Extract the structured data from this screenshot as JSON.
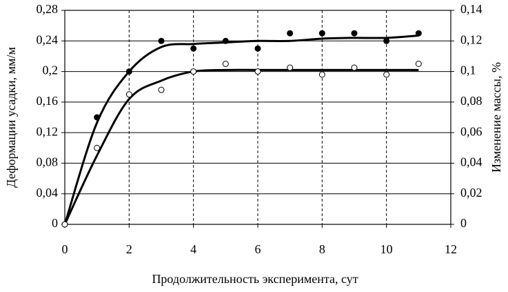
{
  "chart_data": {
    "type": "scatter",
    "x_label": "Продолжительность эксперимента, сут",
    "y_label": "Деформации усадки, мм/м",
    "y2_label": "Изменение массы, %",
    "x": [
      0,
      1,
      2,
      3,
      4,
      5,
      6,
      7,
      8,
      9,
      10,
      11
    ],
    "series": [
      {
        "type": "scatter",
        "marker": "filled",
        "color": "#000000",
        "axis": "y",
        "values": [
          0,
          0.14,
          0.2,
          0.24,
          0.23,
          0.24,
          0.23,
          0.25,
          0.25,
          0.25,
          0.24,
          0.25
        ]
      },
      {
        "type": "scatter",
        "marker": "open",
        "color": "#000000",
        "axis": "y2",
        "values": [
          0,
          0.05,
          0.085,
          0.088,
          0.1,
          0.105,
          0.1,
          0.1025,
          0.098,
          0.1025,
          0.098,
          0.105
        ]
      },
      {
        "type": "line",
        "color": "#000000",
        "axis": "y",
        "values": [
          0,
          0.133,
          0.2,
          0.232,
          0.236,
          0.238,
          0.24,
          0.24,
          0.243,
          0.244,
          0.244,
          0.247
        ]
      },
      {
        "type": "line",
        "color": "#000000",
        "axis": "y2",
        "values": [
          0,
          0.045,
          0.082,
          0.094,
          0.1,
          0.101,
          0.101,
          0.101,
          0.101,
          0.101,
          0.101,
          0.101
        ]
      }
    ],
    "xlim": [
      0,
      12
    ],
    "xticks": [
      0,
      2,
      4,
      6,
      8,
      10,
      12
    ],
    "ylim": [
      0,
      0.28
    ],
    "yticks": [
      0,
      {
        "value": 0.04,
        "label": "0,04"
      },
      {
        "value": 0.08,
        "label": "0,08"
      },
      {
        "value": 0.12,
        "label": "0,12"
      },
      {
        "value": 0.16,
        "label": "0,16"
      },
      {
        "value": 0.2,
        "label": "0,2"
      },
      {
        "value": 0.24,
        "label": "0,24"
      },
      {
        "value": 0.28,
        "label": "0,28"
      }
    ],
    "y2lim": [
      0,
      0.14
    ],
    "y2ticks": [
      0,
      {
        "value": 0.02,
        "label": "0,02"
      },
      {
        "value": 0.04,
        "label": "0,04"
      },
      {
        "value": 0.06,
        "label": "0,06"
      },
      {
        "value": 0.08,
        "label": "0,08"
      },
      {
        "value": 0.1,
        "label": "0,1"
      },
      {
        "value": 0.12,
        "label": "0,12"
      },
      {
        "value": 0.14,
        "label": "0,14"
      }
    ],
    "grid": true
  }
}
